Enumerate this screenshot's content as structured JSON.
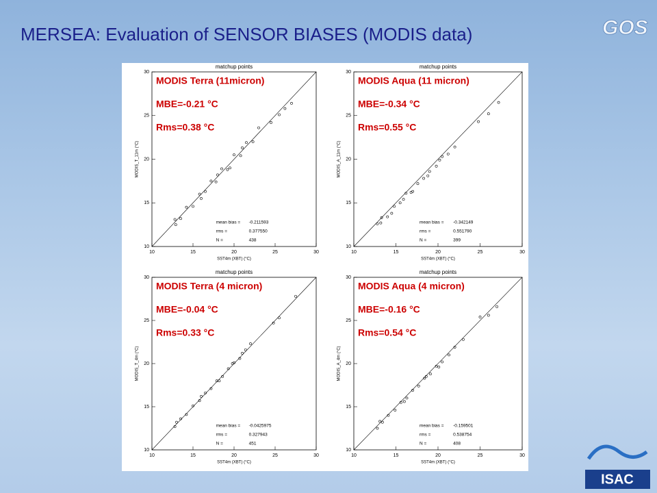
{
  "title": "MERSEA: Evaluation of SENSOR BIASES (MODIS data)",
  "logos": [
    "GOS",
    "ISAC"
  ],
  "chart_data": [
    {
      "type": "scatter",
      "title": "matchup points",
      "annotations": [
        "MODIS Terra (11micron)",
        "MBE=-0.21 °C",
        "Rms=0.38 °C"
      ],
      "x_label": "SST4m (XBT)  (°C)",
      "y_label": "MODIS_T_11m  (°C)",
      "stats_labels": [
        "mean bias =",
        "rms =",
        "N ="
      ],
      "stats_values": [
        "-0.211593",
        "0.377550",
        "438"
      ],
      "xlim": [
        10,
        30
      ],
      "ylim": [
        10,
        30
      ],
      "xticks": [
        10,
        15,
        20,
        25,
        30
      ],
      "yticks": [
        10,
        15,
        20,
        25,
        30
      ],
      "color": "#000000",
      "x": [
        12.8,
        13.5,
        14.2,
        15,
        15.8,
        16.5,
        17.2,
        17.8,
        18.5,
        19.2,
        20,
        20.8,
        21.5,
        22.3,
        23,
        24.5,
        25.5,
        26.2,
        27,
        12.9,
        16,
        18,
        19.5,
        21
      ],
      "y": [
        13.1,
        13.2,
        14.5,
        14.6,
        16,
        16.3,
        17.5,
        17.4,
        18.9,
        18.8,
        20.5,
        20.4,
        21.9,
        22,
        23.6,
        24.2,
        25.1,
        25.8,
        26.4,
        12.5,
        15.5,
        18.2,
        19,
        21.3
      ]
    },
    {
      "type": "scatter",
      "title": "matchup points",
      "annotations": [
        "MODIS Aqua (11 micron)",
        "MBE=-0.34 °C",
        "Rms=0.55 °C"
      ],
      "x_label": "SST4m (XBT)  (°C)",
      "y_label": "MODIS_A_11m  (°C)",
      "stats_labels": [
        "mean bias =",
        "rms =",
        "N ="
      ],
      "stats_values": [
        "-0.342149",
        "0.551790",
        "399"
      ],
      "xlim": [
        10,
        30
      ],
      "ylim": [
        10,
        30
      ],
      "xticks": [
        10,
        15,
        20,
        25,
        30
      ],
      "yticks": [
        10,
        15,
        20,
        25,
        30
      ],
      "color": "#000000",
      "x": [
        12.8,
        13.3,
        14,
        14.8,
        15.5,
        16.2,
        17,
        17.6,
        18.3,
        19,
        19.8,
        20.5,
        21.2,
        22,
        24.8,
        26,
        27.2,
        13.2,
        15.9,
        18.8,
        20.2,
        14.5,
        16.8
      ],
      "y": [
        12.6,
        13.3,
        13.4,
        14.6,
        15,
        16.1,
        16.3,
        17.2,
        17.8,
        18.6,
        19.2,
        20.3,
        20.6,
        21.4,
        24.3,
        25.2,
        26.5,
        12.7,
        15.4,
        18.1,
        19.9,
        13.8,
        16.2
      ]
    },
    {
      "type": "scatter",
      "title": "matchup points",
      "annotations": [
        "MODIS Terra (4 micron)",
        "MBE=-0.04 °C",
        "Rms=0.33 °C"
      ],
      "x_label": "SST4m (XBT)  (°C)",
      "y_label": "MODIS_T_4m  (°C)",
      "stats_labels": [
        "mean bias =",
        "rms =",
        "N ="
      ],
      "stats_values": [
        "-0.0425975",
        "0.327943",
        "451"
      ],
      "xlim": [
        10,
        30
      ],
      "ylim": [
        10,
        30
      ],
      "xticks": [
        10,
        15,
        20,
        25,
        30
      ],
      "yticks": [
        10,
        15,
        20,
        25,
        30
      ],
      "color": "#000000",
      "x": [
        12.8,
        13.5,
        14.2,
        15,
        15.8,
        16.5,
        17.2,
        17.9,
        18.6,
        19.3,
        20,
        20.7,
        21.4,
        22,
        24.8,
        25.5,
        27.5,
        13,
        16,
        18.2,
        19.8,
        21
      ],
      "y": [
        12.7,
        13.6,
        14.1,
        15.1,
        15.7,
        16.6,
        17.1,
        18,
        18.5,
        19.4,
        20.1,
        20.6,
        21.6,
        22.3,
        24.7,
        25.3,
        27.8,
        13.2,
        16.2,
        18,
        20,
        21.2
      ]
    },
    {
      "type": "scatter",
      "title": "matchup points",
      "annotations": [
        "MODIS Aqua (4 micron)",
        "MBE=-0.16 °C",
        "Rms=0.54 °C"
      ],
      "x_label": "SST4m (XBT)  (°C)",
      "y_label": "MODIS_A_4m  (°C)",
      "stats_labels": [
        "mean bias =",
        "rms =",
        "N ="
      ],
      "stats_values": [
        "-0.159501",
        "0.538754",
        "408"
      ],
      "xlim": [
        10,
        30
      ],
      "ylim": [
        10,
        30
      ],
      "xticks": [
        10,
        15,
        20,
        25,
        30
      ],
      "yticks": [
        10,
        15,
        20,
        25,
        30
      ],
      "color": "#000000",
      "x": [
        12.8,
        13.4,
        14.1,
        14.9,
        15.6,
        16.3,
        17,
        17.7,
        18.4,
        19.1,
        19.8,
        20.5,
        21.3,
        22,
        25,
        26,
        27,
        13.1,
        16,
        18.6,
        20.1,
        23
      ],
      "y": [
        12.5,
        13.2,
        14,
        14.6,
        15.5,
        16,
        16.9,
        17.4,
        18.3,
        18.8,
        19.7,
        20.2,
        21,
        21.9,
        25.4,
        25.6,
        26.6,
        13.3,
        15.6,
        18.5,
        19.6,
        22.8
      ]
    }
  ]
}
